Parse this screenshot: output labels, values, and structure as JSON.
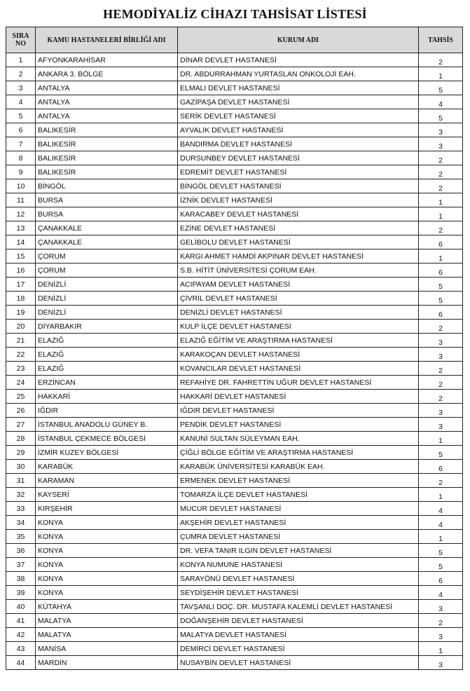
{
  "title": "HEMODİYALİZ CİHAZI TAHSİSAT LİSTESİ",
  "columns": [
    "SIRA NO",
    "KAMU HASTANELERİ BİRLİĞİ ADI",
    "KURUM ADI",
    "TAHSİS"
  ],
  "rows": [
    [
      "1",
      "AFYONKARAHİSAR",
      "DİNAR DEVLET HASTANESİ",
      "2"
    ],
    [
      "2",
      "ANKARA 3. BÖLGE",
      "DR. ABDURRAHMAN YURTASLAN ONKOLOJİ EAH.",
      "1"
    ],
    [
      "3",
      "ANTALYA",
      "ELMALI DEVLET HASTANESİ",
      "5"
    ],
    [
      "4",
      "ANTALYA",
      "GAZİPAŞA DEVLET HASTANESİ",
      "4"
    ],
    [
      "5",
      "ANTALYA",
      "SERİK DEVLET HASTANESİ",
      "5"
    ],
    [
      "6",
      "BALIKESİR",
      "AYVALIK DEVLET HASTANESİ",
      "3"
    ],
    [
      "7",
      "BALIKESİR",
      "BANDIRMA DEVLET HASTANESİ",
      "3"
    ],
    [
      "8",
      "BALIKESİR",
      "DURSUNBEY DEVLET HASTANESİ",
      "2"
    ],
    [
      "9",
      "BALIKESİR",
      "EDREMİT DEVLET HASTANESİ",
      "2"
    ],
    [
      "10",
      "BİNGÖL",
      "BİNGÖL DEVLET HASTANESİ",
      "2"
    ],
    [
      "11",
      "BURSA",
      "İZNİK DEVLET HASTANESİ",
      "1"
    ],
    [
      "12",
      "BURSA",
      "KARACABEY DEVLET HASTANESİ",
      "1"
    ],
    [
      "13",
      "ÇANAKKALE",
      "EZİNE DEVLET HASTANESİ",
      "2"
    ],
    [
      "14",
      "ÇANAKKALE",
      "GELİBOLU DEVLET HASTANESİ",
      "6"
    ],
    [
      "15",
      "ÇORUM",
      "KARGI AHMET HAMDİ AKPINAR DEVLET HASTANESİ",
      "1"
    ],
    [
      "16",
      "ÇORUM",
      "S.B. HİTİT ÜNİVERSİTESİ ÇORUM EAH.",
      "6"
    ],
    [
      "17",
      "DENİZLİ",
      "ACIPAYAM DEVLET HASTANESİ",
      "5"
    ],
    [
      "18",
      "DENİZLİ",
      "ÇİVRİL DEVLET HASTANESİ",
      "5"
    ],
    [
      "19",
      "DENİZLİ",
      "DENİZLİ DEVLET HASTANESİ",
      "6"
    ],
    [
      "20",
      "DİYARBAKIR",
      "KULP İLÇE DEVLET HASTANESİ",
      "2"
    ],
    [
      "21",
      "ELAZIĞ",
      "ELAZIĞ EĞİTİM VE ARAŞTIRMA HASTANESİ",
      "3"
    ],
    [
      "22",
      "ELAZIĞ",
      "KARAKOÇAN DEVLET HASTANESİ",
      "3"
    ],
    [
      "23",
      "ELAZIĞ",
      "KOVANCILAR DEVLET HASTANESİ",
      "2"
    ],
    [
      "24",
      "ERZİNCAN",
      "REFAHİYE DR. FAHRETTİN UĞUR DEVLET HASTANESİ",
      "2"
    ],
    [
      "25",
      "HAKKARİ",
      "HAKKARİ  DEVLET HASTANESİ",
      "2"
    ],
    [
      "26",
      "IĞDIR",
      "IĞDIR DEVLET HASTANESİ",
      "3"
    ],
    [
      "27",
      "İSTANBUL ANADOLU GÜNEY B.",
      "PENDİK DEVLET HASTANESİ",
      "3"
    ],
    [
      "28",
      "İSTANBUL ÇEKMECE BÖLGESİ",
      "KANUNİ SULTAN SÜLEYMAN EAH.",
      "1"
    ],
    [
      "29",
      "İZMİR KUZEY BÖLGESİ",
      "ÇİĞLİ BÖLGE EĞİTİM VE ARAŞTIRMA HASTANESİ",
      "5"
    ],
    [
      "30",
      "KARABÜK",
      "KARABÜK ÜNİVERSİTESİ KARABÜK EAH.",
      "6"
    ],
    [
      "31",
      "KARAMAN",
      "ERMENEK DEVLET HASTANESİ",
      "2"
    ],
    [
      "32",
      "KAYSERİ",
      "TOMARZA İLÇE DEVLET HASTANESİ",
      "1"
    ],
    [
      "33",
      "KIRŞEHİR",
      "MUCUR DEVLET HASTANESİ",
      "4"
    ],
    [
      "34",
      "KONYA",
      "AKŞEHİR DEVLET HASTANESİ",
      "4"
    ],
    [
      "35",
      "KONYA",
      "ÇUMRA DEVLET HASTANESİ",
      "1"
    ],
    [
      "36",
      "KONYA",
      "DR. VEFA TANIR ILGIN DEVLET HASTANESİ",
      "5"
    ],
    [
      "37",
      "KONYA",
      "KONYA NUMUNE HASTANESİ",
      "5"
    ],
    [
      "38",
      "KONYA",
      "SARAYÖNÜ DEVLET HASTANESİ",
      "6"
    ],
    [
      "39",
      "KONYA",
      "SEYDİŞEHİR DEVLET HASTANESİ",
      "4"
    ],
    [
      "40",
      "KÜTAHYA",
      "TAVŞANLI DOÇ. DR. MUSTAFA KALEMLİ DEVLET HASTANESİ",
      "3"
    ],
    [
      "41",
      "MALATYA",
      "DOĞANŞEHİR DEVLET HASTANESİ",
      "2"
    ],
    [
      "42",
      "MALATYA",
      "MALATYA DEVLET HASTANESİ",
      "3"
    ],
    [
      "43",
      "MANİSA",
      "DEMİRCİ DEVLET HASTANESİ",
      "1"
    ],
    [
      "44",
      "MARDİN",
      "NUSAYBİN DEVLET HASTANESİ",
      "3"
    ]
  ]
}
